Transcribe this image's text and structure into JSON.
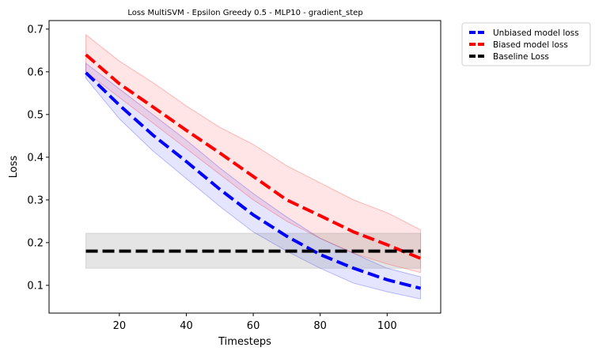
{
  "chart_data": {
    "type": "line",
    "title": "Loss MultiSVM - Epsilon Greedy 0.5 - MLP10 - gradient_step",
    "xlabel": "Timesteps",
    "ylabel": "Loss",
    "xlim": [
      -1,
      116
    ],
    "ylim": [
      0.035,
      0.72
    ],
    "xticks": [
      20,
      40,
      60,
      80,
      100
    ],
    "xtick_labels": [
      "20",
      "40",
      "60",
      "80",
      "100"
    ],
    "yticks": [
      0.1,
      0.2,
      0.3,
      0.4,
      0.5,
      0.6,
      0.7
    ],
    "ytick_labels": [
      "0.1",
      "0.2",
      "0.3",
      "0.4",
      "0.5",
      "0.6",
      "0.7"
    ],
    "grid": false,
    "legend_placement": "outside-top-right",
    "x": [
      10,
      20,
      30,
      40,
      50,
      60,
      70,
      80,
      90,
      100,
      110
    ],
    "series": [
      {
        "name": "Unbiased model loss",
        "color": "#0000ff",
        "band_color": "#0000ff",
        "values": [
          0.598,
          0.522,
          0.452,
          0.39,
          0.325,
          0.265,
          0.215,
          0.172,
          0.14,
          0.113,
          0.093
        ],
        "lower": [
          0.585,
          0.49,
          0.415,
          0.35,
          0.285,
          0.225,
          0.18,
          0.14,
          0.105,
          0.085,
          0.068
        ],
        "upper": [
          0.62,
          0.56,
          0.5,
          0.44,
          0.375,
          0.315,
          0.26,
          0.21,
          0.175,
          0.14,
          0.12
        ]
      },
      {
        "name": "Biased model loss",
        "color": "#ff0000",
        "band_color": "#ff0000",
        "values": [
          0.64,
          0.572,
          0.518,
          0.463,
          0.41,
          0.355,
          0.3,
          0.263,
          0.225,
          0.195,
          0.163
        ],
        "lower": [
          0.6,
          0.54,
          0.48,
          0.42,
          0.36,
          0.3,
          0.25,
          0.21,
          0.175,
          0.15,
          0.13
        ],
        "upper": [
          0.687,
          0.625,
          0.575,
          0.52,
          0.47,
          0.43,
          0.38,
          0.34,
          0.3,
          0.27,
          0.23
        ]
      },
      {
        "name": "Baseline Loss",
        "color": "#000000",
        "band_color": "#7f7f7f",
        "values": [
          0.18,
          0.18,
          0.18,
          0.18,
          0.18,
          0.18,
          0.18,
          0.18,
          0.18,
          0.18,
          0.18
        ],
        "lower": [
          0.14,
          0.14,
          0.14,
          0.14,
          0.14,
          0.14,
          0.14,
          0.14,
          0.14,
          0.14,
          0.14
        ],
        "upper": [
          0.222,
          0.222,
          0.222,
          0.222,
          0.222,
          0.222,
          0.222,
          0.222,
          0.222,
          0.222,
          0.222
        ]
      }
    ]
  }
}
